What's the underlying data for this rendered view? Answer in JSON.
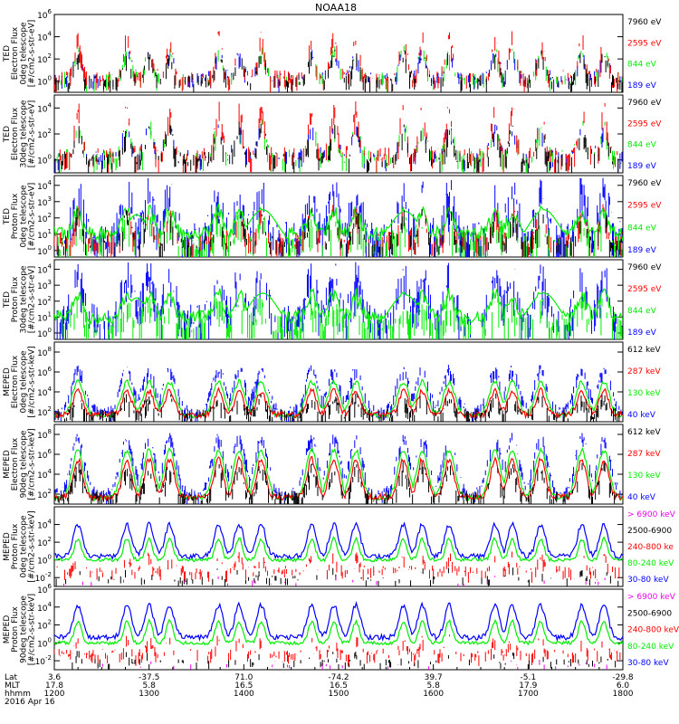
{
  "title": "NOAA18",
  "colors": {
    "blue": "#0000ff",
    "green": "#00ee00",
    "red": "#ff0000",
    "black": "#000000",
    "magenta": "#ee00ee"
  },
  "panels": [
    {
      "ylabel": [
        "TED",
        "Electron Flux",
        "0deg telescope",
        "[#/cm2-s-str-eV]"
      ],
      "ticks": [
        [
          "10",
          "6"
        ],
        [
          "10",
          "4"
        ],
        [
          "10",
          "2"
        ],
        [
          "10",
          "0"
        ]
      ],
      "ylim_exp": [
        -1,
        6
      ],
      "legend": [
        {
          "text": "7960 eV",
          "color": "black"
        },
        {
          "text": "2595 eV",
          "color": "red"
        },
        {
          "text": "844 eV",
          "color": "green"
        },
        {
          "text": "189 eV",
          "color": "blue"
        }
      ]
    },
    {
      "ylabel": [
        "TED",
        "Electron Flux",
        "30deg telescope",
        "[#/cm2-s-str-eV]"
      ],
      "ticks": [
        [
          "10",
          "4"
        ],
        [
          "10",
          "2"
        ],
        [
          "10",
          "0"
        ]
      ],
      "ylim_exp": [
        -1,
        5
      ],
      "legend": [
        {
          "text": "7960 eV",
          "color": "black"
        },
        {
          "text": "2595 eV",
          "color": "red"
        },
        {
          "text": "844 eV",
          "color": "green"
        },
        {
          "text": "189 eV",
          "color": "blue"
        }
      ]
    },
    {
      "ylabel": [
        "TED",
        "Proton Flux",
        "0deg telescope",
        "[#/cm2-s-str-eV]"
      ],
      "ticks": [
        [
          "10",
          "4"
        ],
        [
          "10",
          "3"
        ],
        [
          "10",
          "2"
        ],
        [
          "10",
          "1"
        ],
        [
          "10",
          "0"
        ]
      ],
      "ylim_exp": [
        -0.4,
        4.6
      ],
      "legend": [
        {
          "text": "7960 eV",
          "color": "black"
        },
        {
          "text": "2595 eV",
          "color": "red"
        },
        {
          "text": "844 eV",
          "color": "green"
        },
        {
          "text": "189 eV",
          "color": "blue"
        }
      ]
    },
    {
      "ylabel": [
        "TED",
        "Proton Flux",
        "30deg telescope",
        "[#/cm2-s-str-eV]"
      ],
      "ticks": [
        [
          "10",
          "4"
        ],
        [
          "10",
          "3"
        ],
        [
          "10",
          "2"
        ],
        [
          "10",
          "1"
        ],
        [
          "10",
          "0"
        ]
      ],
      "ylim_exp": [
        -0.4,
        4.6
      ],
      "legend": [
        {
          "text": "7960 eV",
          "color": "black"
        },
        {
          "text": "2595 eV",
          "color": "red"
        },
        {
          "text": "844 eV",
          "color": "green"
        },
        {
          "text": "189 eV",
          "color": "blue"
        }
      ]
    },
    {
      "ylabel": [
        "MEPED",
        "Electron Flux",
        "0deg telescope",
        "[#/cm2-s-str-keV]"
      ],
      "ticks": [
        [
          "10",
          "8"
        ],
        [
          "10",
          "6"
        ],
        [
          "10",
          "4"
        ],
        [
          "10",
          "2"
        ]
      ],
      "ylim_exp": [
        1,
        9
      ],
      "legend": [
        {
          "text": "612 keV",
          "color": "black"
        },
        {
          "text": "287 keV",
          "color": "red"
        },
        {
          "text": "130 keV",
          "color": "green"
        },
        {
          "text": "40 keV",
          "color": "blue"
        }
      ]
    },
    {
      "ylabel": [
        "MEPED",
        "Electron Flux",
        "90deg telescope",
        "[#/cm2-s-str-keV]"
      ],
      "ticks": [
        [
          "10",
          "8"
        ],
        [
          "10",
          "6"
        ],
        [
          "10",
          "4"
        ],
        [
          "10",
          "2"
        ]
      ],
      "ylim_exp": [
        1,
        9
      ],
      "legend": [
        {
          "text": "612 keV",
          "color": "black"
        },
        {
          "text": "287 keV",
          "color": "red"
        },
        {
          "text": "130 keV",
          "color": "green"
        },
        {
          "text": "40 keV",
          "color": "blue"
        }
      ]
    },
    {
      "ylabel": [
        "MEPED",
        "Proton Flux",
        "0deg telescope",
        "[#/cm2-s-str-keV]"
      ],
      "ticks": [
        [
          "10",
          "4"
        ],
        [
          "10",
          "2"
        ],
        [
          "10",
          "0"
        ],
        [
          "10",
          "-2"
        ]
      ],
      "ylim_exp": [
        -3,
        6
      ],
      "legend": [
        {
          "text": "> 6900 keV",
          "color": "magenta"
        },
        {
          "text": "2500-6900",
          "color": "black"
        },
        {
          "text": "240-800 ke",
          "color": "red"
        },
        {
          "text": "80-240 keV",
          "color": "green"
        },
        {
          "text": "30-80 keV",
          "color": "blue"
        }
      ]
    },
    {
      "ylabel": [
        "MEPED",
        "Proton Flux",
        "90deg telescope",
        "[#/cm2-s-str-keV]"
      ],
      "ticks": [
        [
          "10",
          "6"
        ],
        [
          "10",
          "4"
        ],
        [
          "10",
          "2"
        ],
        [
          "10",
          "0"
        ],
        [
          "10",
          "-2"
        ]
      ],
      "ylim_exp": [
        -3,
        6
      ],
      "legend": [
        {
          "text": "> 6900 keV",
          "color": "magenta"
        },
        {
          "text": "2500-6900",
          "color": "black"
        },
        {
          "text": "240-800 keV",
          "color": "red"
        },
        {
          "text": "80-240 keV",
          "color": "green"
        },
        {
          "text": "30-80 keV",
          "color": "blue"
        }
      ]
    }
  ],
  "xaxis": {
    "row_labels": [
      "Lat",
      "MLT",
      "hhmm"
    ],
    "columns": [
      {
        "lat": "3.6",
        "mlt": "17.8",
        "hhmm": "1200"
      },
      {
        "lat": "-37.5",
        "mlt": "5.8",
        "hhmm": "1300"
      },
      {
        "lat": "71.0",
        "mlt": "16.5",
        "hhmm": "1400"
      },
      {
        "lat": "-74.2",
        "mlt": "16.5",
        "hhmm": "1500"
      },
      {
        "lat": "39.7",
        "mlt": "5.8",
        "hhmm": "1600"
      },
      {
        "lat": "-5.1",
        "mlt": "17.9",
        "hhmm": "1700"
      },
      {
        "lat": "-29.8",
        "mlt": "6.0",
        "hhmm": "1800"
      }
    ],
    "date": "2016 Apr 16"
  },
  "chart_data": {
    "type": "line",
    "title": "NOAA18",
    "x_range_hhmm": [
      "1200",
      "1800"
    ],
    "y_scale": "log",
    "pass_peaks_hhmm": [
      "1215",
      "1246",
      "1300",
      "1313",
      "1344",
      "1357",
      "1411",
      "1443",
      "1457",
      "1511",
      "1541",
      "1553",
      "1610",
      "1639",
      "1650",
      "1708",
      "1734",
      "1748"
    ],
    "series": [
      {
        "panel": 1,
        "name": "189 eV",
        "peak_log10": 2.8
      },
      {
        "panel": 1,
        "name": "2595 eV",
        "peak_log10": 4.7
      },
      {
        "panel": 3,
        "name": "189 eV",
        "peak_log10": 4.0
      },
      {
        "panel": 3,
        "name": "844 eV",
        "background_log10": 1.0
      },
      {
        "panel": 5,
        "name": "40 keV",
        "peak_log10": 6.8
      },
      {
        "panel": 6,
        "name": "40 keV",
        "peak_log10": 7.6
      },
      {
        "panel": 7,
        "name": "30-80 keV",
        "peak_log10": 4.4
      },
      {
        "panel": 8,
        "name": "30-80 keV",
        "peak_log10": 5.0
      }
    ]
  }
}
